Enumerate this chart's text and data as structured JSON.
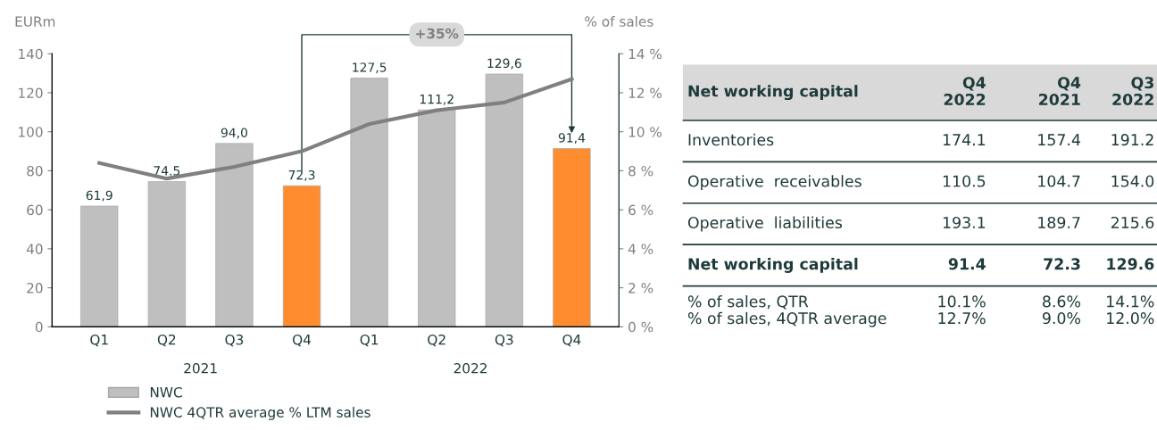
{
  "chart_data": [
    {
      "type": "bar",
      "ylabel": "EURm",
      "y2label": "% of sales",
      "categories": [
        "Q1",
        "Q2",
        "Q3",
        "Q4",
        "Q1",
        "Q2",
        "Q3",
        "Q4"
      ],
      "ylim": [
        0,
        140
      ],
      "yticks": [
        0,
        20,
        40,
        60,
        80,
        100,
        120,
        140
      ],
      "y2lim": [
        0,
        14
      ],
      "y2ticks": [
        {
          "value": 0,
          "label": "0 %"
        },
        {
          "value": 2,
          "label": "2 %"
        },
        {
          "value": 4,
          "label": "4 %"
        },
        {
          "value": 6,
          "label": "6 %"
        },
        {
          "value": 8,
          "label": "8 %"
        },
        {
          "value": 10,
          "label": "10 %"
        },
        {
          "value": 12,
          "label": "12 %"
        },
        {
          "value": 14,
          "label": "14 %"
        }
      ],
      "series": [
        {
          "name": "NWC",
          "type": "bar",
          "colors": [
            "#bfbfbf",
            "#bfbfbf",
            "#bfbfbf",
            "#ff8c2e",
            "#bfbfbf",
            "#bfbfbf",
            "#bfbfbf",
            "#ff8c2e"
          ],
          "color": "#bfbfbf",
          "values": [
            61.9,
            74.5,
            94.0,
            72.3,
            127.5,
            111.2,
            129.6,
            91.4
          ],
          "value_labels": [
            "61,9",
            "74.5",
            "94,0",
            "72,3",
            "127,5",
            "111,2",
            "129,6",
            "91,4"
          ]
        },
        {
          "name": "NWC 4QTR average % LTM sales",
          "type": "line",
          "axis": "y2",
          "color": "#808080",
          "values": [
            8.4,
            7.6,
            8.2,
            9.0,
            10.4,
            11.1,
            11.5,
            12.7
          ]
        }
      ],
      "annotations": [
        "2021",
        "2022",
        "+35%"
      ],
      "legend": "bottom left",
      "grid": false
    },
    {
      "type": "other",
      "annotations": [
        "Net working capital",
        "Q4\n2022",
        "Q4\n2021",
        "Q3\n2022",
        "Inventories",
        "174.1",
        "157.4",
        "191.2",
        "Operative  receivables",
        "110.5",
        "104.7",
        "154.0",
        "Operative  liabilities",
        "193.1",
        "189.7",
        "215.6",
        "Net working capital",
        "91.4",
        "72.3",
        "129.6",
        "% of sales, QTR\n% of sales, 4QTR average",
        "10.1%\n12.7%",
        "8.6%\n9.0%",
        "14.1%\n12.0%"
      ]
    }
  ]
}
